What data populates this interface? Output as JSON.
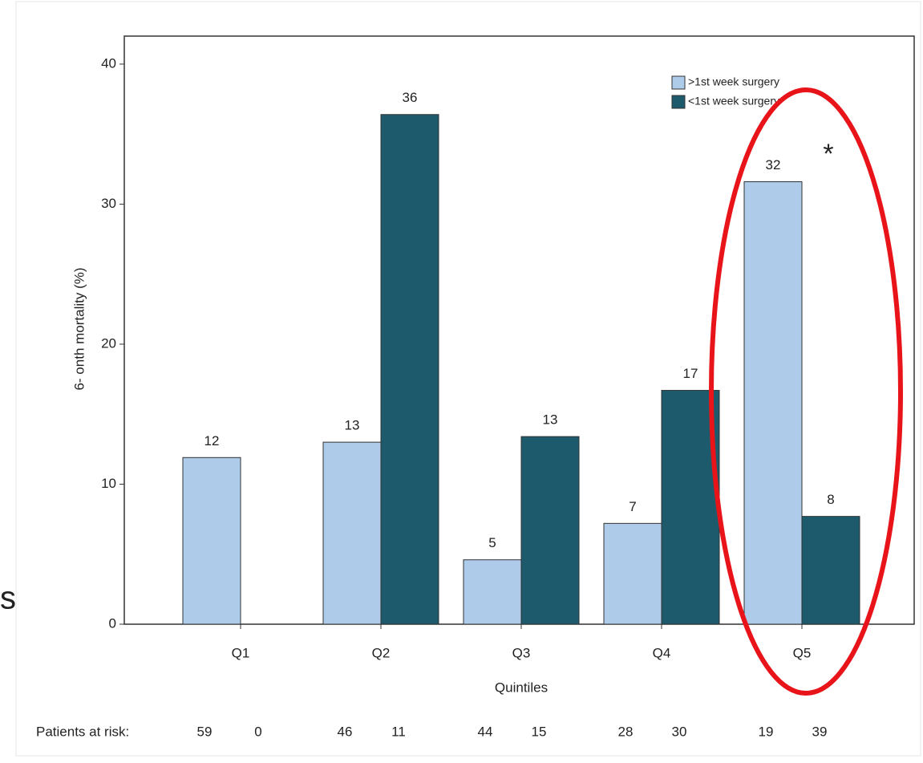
{
  "chart_data": {
    "type": "bar",
    "y_label": "6-   onth mortality (%)",
    "x_label": "Quintiles",
    "categories": [
      "Q1",
      "Q2",
      "Q3",
      "Q4",
      "Q5"
    ],
    "series": [
      {
        "name": ">1st week surgery",
        "color": "#aecbea",
        "values": [
          11.9,
          13.0,
          4.6,
          7.2,
          31.6
        ],
        "value_labels": [
          "12",
          "13",
          "5",
          "7",
          "32"
        ],
        "at_risk": [
          59,
          46,
          44,
          28,
          19
        ]
      },
      {
        "name": "<1st week surgery",
        "color": "#1d5a6c",
        "values": [
          null,
          36.4,
          13.4,
          16.7,
          7.7
        ],
        "value_labels": [
          null,
          "36",
          "13",
          "17",
          "8"
        ],
        "at_risk": [
          0,
          11,
          15,
          30,
          39
        ]
      }
    ],
    "at_risk_label": "Patients at risk:",
    "annotation": "*",
    "edge_fragment": "s",
    "ylim": [
      0,
      42
    ],
    "yticks": [
      0,
      10,
      20,
      30,
      40
    ],
    "grid": false,
    "legend": "top-right"
  }
}
